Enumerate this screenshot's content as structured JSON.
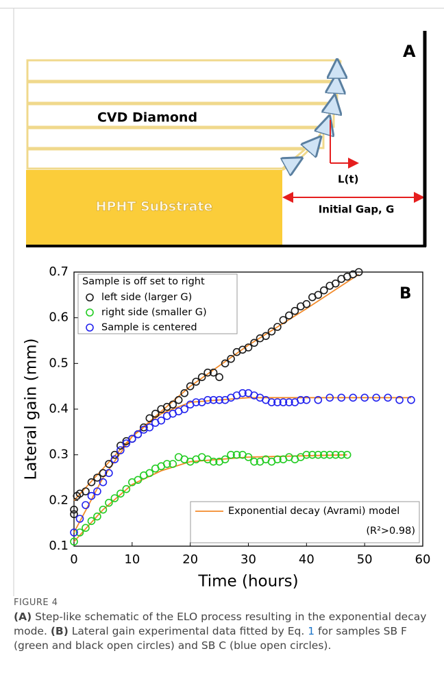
{
  "diagram": {
    "panel": "A",
    "layers": "CVD Diamond",
    "substrate": "HPHT Substrate",
    "growth": "L(t)",
    "gap": "Initial Gap, G"
  },
  "chart_data": {
    "type": "scatter",
    "panel": "B",
    "xlabel": "Time (hours)",
    "ylabel": "Lateral gain (mm)",
    "xlim": [
      0,
      60
    ],
    "xticks": [
      0,
      10,
      20,
      30,
      40,
      50,
      60
    ],
    "ylim": [
      0.1,
      0.7
    ],
    "yticks": [
      0.1,
      0.2,
      0.3,
      0.4,
      0.5,
      0.6,
      0.7
    ],
    "legend_title": "Sample is off set to right",
    "series": [
      {
        "name": "left side (larger G)",
        "color": "#1a1a1a",
        "x": [
          0,
          0,
          0.5,
          1,
          2,
          3,
          4,
          5,
          6,
          7,
          8,
          9,
          10,
          11,
          12,
          13,
          14,
          15,
          16,
          17,
          18,
          19,
          20,
          21,
          22,
          23,
          24,
          25,
          26,
          27,
          28,
          29,
          30,
          31,
          32,
          33,
          34,
          35,
          36,
          37,
          38,
          39,
          40,
          41,
          42,
          43,
          44,
          45,
          46,
          47,
          48,
          49
        ],
        "values": [
          0.17,
          0.18,
          0.21,
          0.215,
          0.22,
          0.24,
          0.25,
          0.26,
          0.28,
          0.3,
          0.32,
          0.33,
          0.335,
          0.345,
          0.36,
          0.38,
          0.39,
          0.4,
          0.405,
          0.41,
          0.42,
          0.435,
          0.45,
          0.46,
          0.47,
          0.48,
          0.48,
          0.47,
          0.5,
          0.51,
          0.525,
          0.53,
          0.535,
          0.545,
          0.555,
          0.56,
          0.57,
          0.58,
          0.595,
          0.605,
          0.615,
          0.625,
          0.63,
          0.645,
          0.65,
          0.66,
          0.67,
          0.675,
          0.685,
          0.69,
          0.695,
          0.7
        ]
      },
      {
        "name": "right side (smaller G)",
        "color": "#22cc22",
        "x": [
          0,
          1,
          2,
          3,
          4,
          5,
          6,
          7,
          8,
          9,
          10,
          11,
          12,
          13,
          14,
          15,
          16,
          17,
          18,
          19,
          20,
          21,
          22,
          23,
          24,
          25,
          26,
          27,
          28,
          29,
          30,
          31,
          32,
          33,
          34,
          35,
          36,
          37,
          38,
          39,
          40,
          41,
          42,
          43,
          44,
          45,
          46,
          47
        ],
        "values": [
          0.11,
          0.13,
          0.14,
          0.155,
          0.165,
          0.18,
          0.195,
          0.205,
          0.215,
          0.225,
          0.24,
          0.245,
          0.255,
          0.26,
          0.27,
          0.275,
          0.28,
          0.28,
          0.295,
          0.29,
          0.285,
          0.29,
          0.295,
          0.29,
          0.285,
          0.285,
          0.29,
          0.3,
          0.3,
          0.3,
          0.295,
          0.285,
          0.285,
          0.29,
          0.285,
          0.29,
          0.29,
          0.295,
          0.29,
          0.295,
          0.3,
          0.3,
          0.3,
          0.3,
          0.3,
          0.3,
          0.3,
          0.3
        ]
      },
      {
        "name": "Sample is centered",
        "color": "#2222ee",
        "x": [
          0,
          1,
          2,
          3,
          4,
          5,
          6,
          7,
          8,
          9,
          10,
          11,
          12,
          13,
          14,
          15,
          16,
          17,
          18,
          19,
          20,
          21,
          22,
          23,
          24,
          25,
          26,
          27,
          28,
          29,
          30,
          31,
          32,
          33,
          34,
          35,
          36,
          37,
          38,
          39,
          40,
          42,
          44,
          46,
          48,
          50,
          52,
          54,
          56,
          58
        ],
        "values": [
          0.13,
          0.16,
          0.19,
          0.21,
          0.22,
          0.24,
          0.26,
          0.29,
          0.31,
          0.325,
          0.335,
          0.345,
          0.355,
          0.36,
          0.37,
          0.375,
          0.385,
          0.39,
          0.395,
          0.4,
          0.41,
          0.415,
          0.415,
          0.42,
          0.42,
          0.42,
          0.42,
          0.425,
          0.43,
          0.435,
          0.435,
          0.43,
          0.425,
          0.42,
          0.415,
          0.415,
          0.415,
          0.415,
          0.415,
          0.42,
          0.42,
          0.42,
          0.425,
          0.425,
          0.425,
          0.425,
          0.425,
          0.425,
          0.42,
          0.42
        ]
      }
    ],
    "fit": {
      "name": "Exponential decay (Avrami) model",
      "note": "(R²>0.98)",
      "color": "#f28a2a",
      "curves": [
        {
          "x": [
            0,
            10,
            20,
            30,
            40,
            49
          ],
          "values": [
            0.2,
            0.34,
            0.45,
            0.54,
            0.62,
            0.695
          ]
        },
        {
          "x": [
            0,
            5,
            10,
            15,
            20,
            30,
            40,
            58
          ],
          "values": [
            0.13,
            0.25,
            0.34,
            0.39,
            0.415,
            0.425,
            0.425,
            0.425
          ]
        },
        {
          "x": [
            0,
            5,
            10,
            15,
            20,
            30,
            47
          ],
          "values": [
            0.11,
            0.18,
            0.235,
            0.265,
            0.285,
            0.295,
            0.3
          ]
        }
      ]
    }
  },
  "caption": {
    "label": "FIGURE 4",
    "segments": [
      {
        "text": "(A)",
        "bold": true
      },
      {
        "text": " Step-like schematic of the ELO process resulting in the exponential decay mode. "
      },
      {
        "text": "(B)",
        "bold": true
      },
      {
        "text": " Lateral gain experimental data fitted by Eq. "
      },
      {
        "text": "1",
        "link": true
      },
      {
        "text": " for samples SB F (green and black open circles) and SB C (blue open circles)."
      }
    ]
  }
}
